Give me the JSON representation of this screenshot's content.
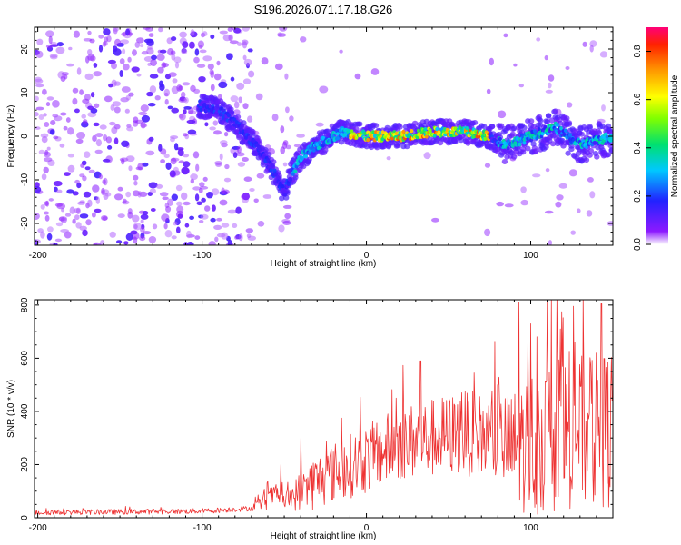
{
  "title": "S196.2026.071.17.18.G26",
  "chart_data": [
    {
      "type": "heatmap",
      "xlabel": "Height of straight line (km)",
      "ylabel": "Frequency (Hz)",
      "xlim": [
        -202,
        150
      ],
      "ylim": [
        -25,
        25
      ],
      "xticks": [
        -200,
        -100,
        0,
        100
      ],
      "yticks": [
        -20,
        -10,
        0,
        10,
        20
      ],
      "colorbar": {
        "label": "Normalized spectral amplitude",
        "range": [
          0.0,
          0.9
        ],
        "ticks": [
          "0.0",
          "0.2",
          "0.4",
          "0.6",
          "0.8"
        ]
      },
      "ridge": [
        [
          -100,
          7
        ],
        [
          -90,
          6
        ],
        [
          -80,
          3
        ],
        [
          -70,
          -1
        ],
        [
          -62,
          -5
        ],
        [
          -55,
          -9
        ],
        [
          -50,
          -13
        ],
        [
          -46,
          -9
        ],
        [
          -40,
          -5
        ],
        [
          -34,
          -3
        ],
        [
          -25,
          -1
        ],
        [
          -15,
          1
        ],
        [
          0,
          0
        ],
        [
          20,
          0
        ],
        [
          40,
          1
        ],
        [
          60,
          1
        ],
        [
          75,
          0
        ],
        [
          85,
          -2
        ],
        [
          100,
          0
        ],
        [
          115,
          2
        ],
        [
          130,
          -2
        ],
        [
          150,
          0
        ]
      ],
      "peak_region": {
        "x": [
          -10,
          75
        ],
        "f": 0,
        "amplitude": 0.85
      }
    },
    {
      "type": "line",
      "xlabel": "Height of straight line (km)",
      "ylabel": "SNR (10 * v/v)",
      "xlim": [
        -202,
        150
      ],
      "ylim": [
        0,
        820
      ],
      "xticks": [
        -200,
        -100,
        0,
        100
      ],
      "yticks": [
        0,
        200,
        400,
        600,
        800
      ],
      "series": [
        {
          "name": "SNR",
          "color": "#ee3333",
          "envelope": [
            [
              -202,
              20
            ],
            [
              -150,
              22
            ],
            [
              -100,
              25
            ],
            [
              -70,
              35
            ],
            [
              -60,
              70
            ],
            [
              -55,
              90
            ],
            [
              -50,
              60
            ],
            [
              -35,
              120
            ],
            [
              -20,
              170
            ],
            [
              0,
              220
            ],
            [
              20,
              280
            ],
            [
              40,
              300
            ],
            [
              60,
              320
            ],
            [
              80,
              290
            ],
            [
              90,
              260
            ],
            [
              100,
              280
            ],
            [
              120,
              320
            ],
            [
              150,
              330
            ]
          ],
          "spread": [
            [
              -202,
              10
            ],
            [
              -70,
              10
            ],
            [
              -60,
              40
            ],
            [
              -50,
              30
            ],
            [
              -35,
              100
            ],
            [
              0,
              130
            ],
            [
              40,
              150
            ],
            [
              80,
              170
            ],
            [
              100,
              280
            ],
            [
              150,
              300
            ]
          ],
          "peaks": [
            [
              -52,
              200
            ],
            [
              -40,
              300
            ],
            [
              -15,
              375
            ],
            [
              18,
              450
            ],
            [
              33,
              590
            ],
            [
              58,
              470
            ],
            [
              80,
              500
            ],
            [
              93,
              810
            ],
            [
              100,
              730
            ],
            [
              118,
              710
            ],
            [
              127,
              660
            ],
            [
              143,
              805
            ]
          ]
        }
      ]
    }
  ]
}
